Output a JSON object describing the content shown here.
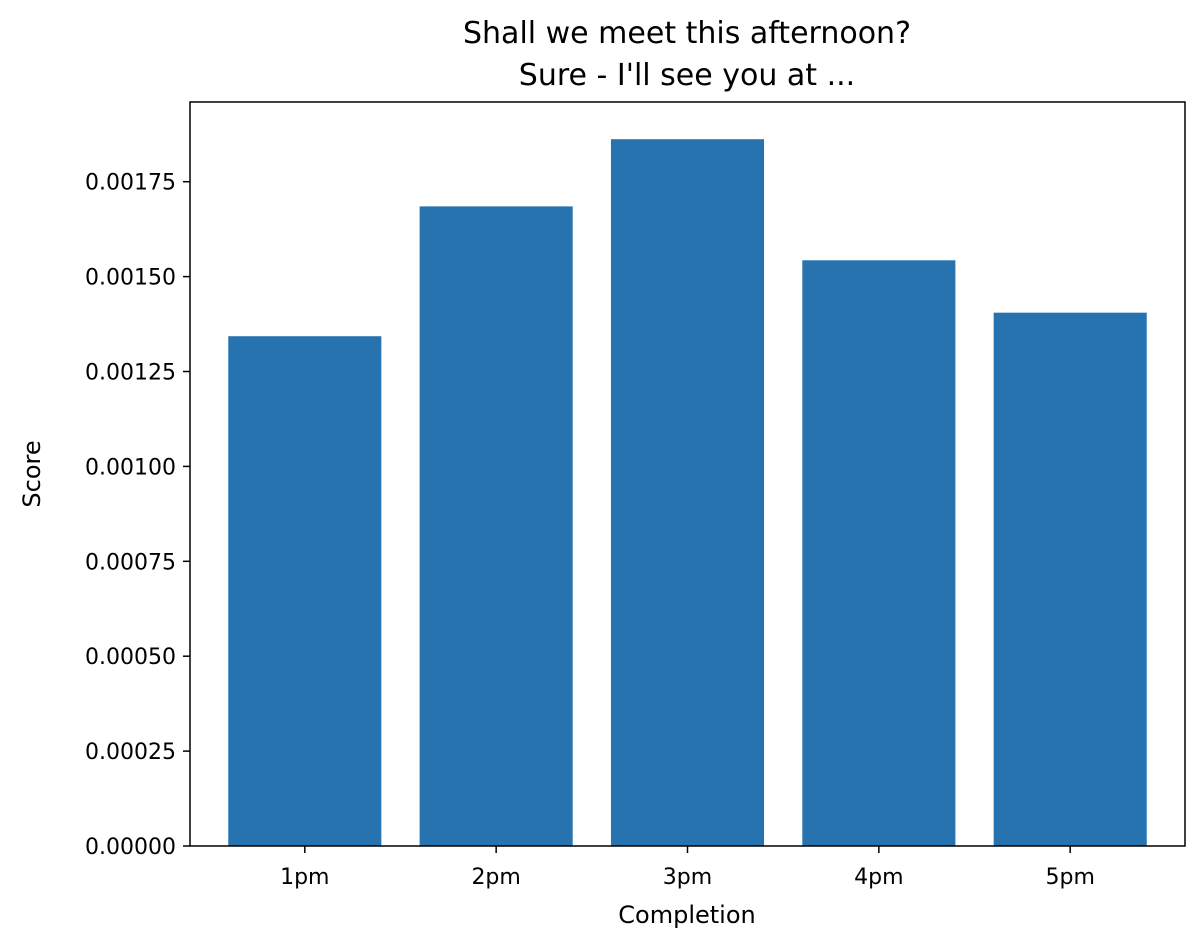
{
  "chart_data": {
    "type": "bar",
    "title": "Shall we meet this afternoon?",
    "subtitle": "Sure - I'll see you at ...",
    "xlabel": "Completion",
    "ylabel": "Score",
    "categories": [
      "1pm",
      "2pm",
      "3pm",
      "4pm",
      "5pm"
    ],
    "values": [
      0.001343,
      0.001685,
      0.001862,
      0.001543,
      0.001405
    ],
    "ylim": [
      0,
      0.00196
    ],
    "yticks": [
      0,
      0.00025,
      0.0005,
      0.00075,
      0.001,
      0.00125,
      0.0015,
      0.00175
    ],
    "ytick_labels": [
      "0.00000",
      "0.00025",
      "0.00050",
      "0.00075",
      "0.00100",
      "0.00125",
      "0.00150",
      "0.00175"
    ],
    "grid": false,
    "bar_color": "#2673b0"
  }
}
